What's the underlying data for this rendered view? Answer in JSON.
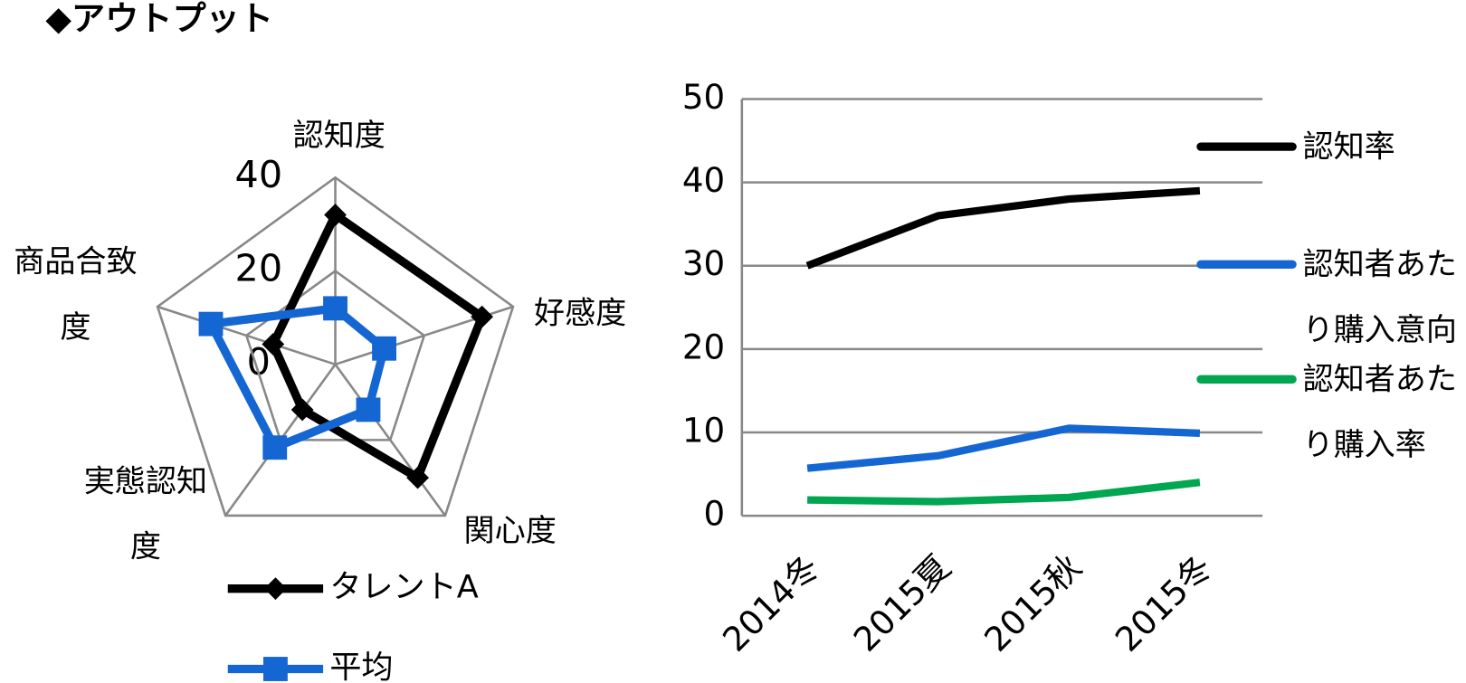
{
  "header": {
    "title": "◆アウトプット"
  },
  "chart_data": [
    {
      "type": "radar",
      "categories": [
        "認知度",
        "好感度",
        "関心度",
        "実態認知度",
        "商品合致度"
      ],
      "series": [
        {
          "name": "タレントA",
          "color": "#000000",
          "marker": "diamond",
          "values": [
            32,
            33,
            30,
            12,
            14
          ]
        },
        {
          "name": "平均",
          "color": "#1466d2",
          "marker": "square",
          "values": [
            12,
            11,
            12,
            22,
            28
          ]
        }
      ],
      "ylim": [
        0,
        40
      ],
      "yticks": [
        0,
        20,
        40
      ],
      "grid": true
    },
    {
      "type": "line",
      "categories": [
        "2014冬",
        "2015夏",
        "2015秋",
        "2015冬"
      ],
      "series": [
        {
          "name": "認知率",
          "color": "#000000",
          "values": [
            30,
            36,
            38,
            39
          ]
        },
        {
          "name": "認知者あたり購入意向",
          "color": "#1466d2",
          "values": [
            5.7,
            7.2,
            10.5,
            9.9
          ]
        },
        {
          "name": "認知者あたり購入率",
          "color": "#00a651",
          "values": [
            1.9,
            1.7,
            2.2,
            4.0
          ]
        }
      ],
      "ylim": [
        0,
        50
      ],
      "yticks": [
        0,
        10,
        20,
        30,
        40,
        50
      ],
      "grid": true,
      "legend": "right"
    }
  ]
}
